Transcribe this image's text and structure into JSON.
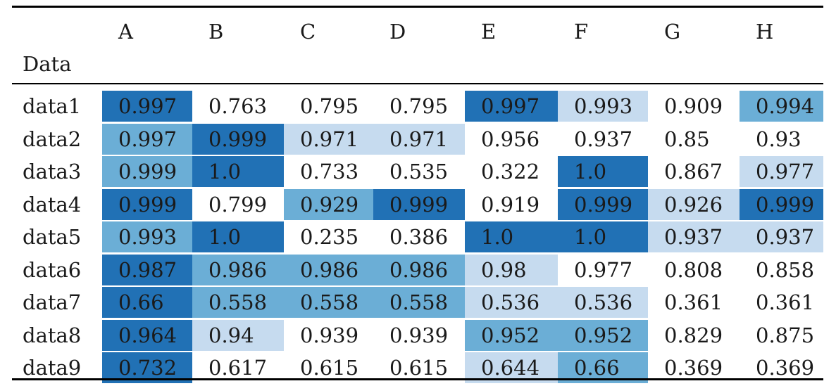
{
  "table": {
    "corner_label": "Data",
    "columns": [
      "A",
      "B",
      "C",
      "D",
      "E",
      "F",
      "G",
      "H"
    ],
    "rows": [
      {
        "label": "data1",
        "values": [
          "0.997",
          "0.763",
          "0.795",
          "0.795",
          "0.997",
          "0.993",
          "0.909",
          "0.994"
        ],
        "levels": [
          3,
          0,
          0,
          0,
          3,
          1,
          0,
          2
        ]
      },
      {
        "label": "data2",
        "values": [
          "0.997",
          "0.999",
          "0.971",
          "0.971",
          "0.956",
          "0.937",
          "0.85",
          "0.93"
        ],
        "levels": [
          2,
          3,
          1,
          1,
          0,
          0,
          0,
          0
        ]
      },
      {
        "label": "data3",
        "values": [
          "0.999",
          "1.0",
          "0.733",
          "0.535",
          "0.322",
          "1.0",
          "0.867",
          "0.977"
        ],
        "levels": [
          2,
          3,
          0,
          0,
          0,
          3,
          0,
          1
        ]
      },
      {
        "label": "data4",
        "values": [
          "0.999",
          "0.799",
          "0.929",
          "0.999",
          "0.919",
          "0.999",
          "0.926",
          "0.999"
        ],
        "levels": [
          3,
          0,
          2,
          3,
          0,
          3,
          1,
          3
        ]
      },
      {
        "label": "data5",
        "values": [
          "0.993",
          "1.0",
          "0.235",
          "0.386",
          "1.0",
          "1.0",
          "0.937",
          "0.937"
        ],
        "levels": [
          2,
          3,
          0,
          0,
          3,
          3,
          1,
          1
        ]
      },
      {
        "label": "data6",
        "values": [
          "0.987",
          "0.986",
          "0.986",
          "0.986",
          "0.98",
          "0.977",
          "0.808",
          "0.858"
        ],
        "levels": [
          3,
          2,
          2,
          2,
          1,
          0,
          0,
          0
        ]
      },
      {
        "label": "data7",
        "values": [
          "0.66",
          "0.558",
          "0.558",
          "0.558",
          "0.536",
          "0.536",
          "0.361",
          "0.361"
        ],
        "levels": [
          3,
          2,
          2,
          2,
          1,
          1,
          0,
          0
        ]
      },
      {
        "label": "data8",
        "values": [
          "0.964",
          "0.94",
          "0.939",
          "0.939",
          "0.952",
          "0.952",
          "0.829",
          "0.875"
        ],
        "levels": [
          3,
          1,
          0,
          0,
          2,
          2,
          0,
          0
        ]
      },
      {
        "label": "data9",
        "values": [
          "0.732",
          "0.617",
          "0.615",
          "0.615",
          "0.644",
          "0.66",
          "0.369",
          "0.369"
        ],
        "levels": [
          3,
          0,
          0,
          0,
          1,
          2,
          0,
          0
        ]
      }
    ],
    "shade_colors": [
      "#ffffff",
      "#c6dbef",
      "#6baed6",
      "#2171b5"
    ]
  }
}
